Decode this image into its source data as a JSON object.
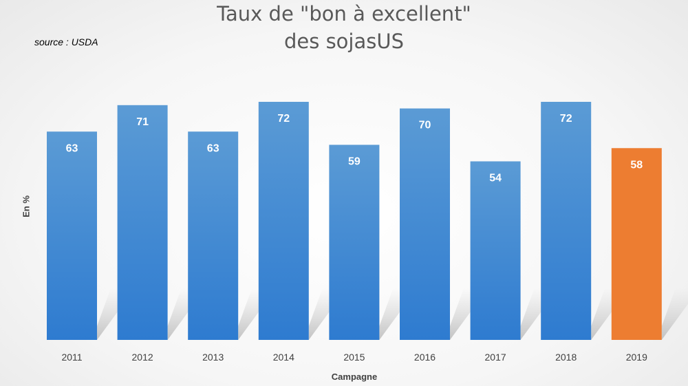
{
  "chart_data": {
    "type": "bar",
    "title": "Taux de \"bon à excellent\"",
    "subtitle": "des sojasUS",
    "source": "source : USDA",
    "xlabel": "Campagne",
    "ylabel": "En %",
    "categories": [
      "2011",
      "2012",
      "2013",
      "2014",
      "2015",
      "2016",
      "2017",
      "2018",
      "2019"
    ],
    "values": [
      63,
      71,
      63,
      72,
      59,
      70,
      54,
      72,
      58
    ],
    "ylim": [
      0,
      72
    ],
    "grid": false,
    "legend": "none",
    "data_labels": true,
    "highlight_index": 8,
    "colors": {
      "bar": "#4a8fd8",
      "bar_top": "#5b9bd5",
      "bar_bottom": "#2e7bd0",
      "highlight": "#ed7d31",
      "data_label": "#ffffff",
      "tick_label": "#404040",
      "title": "#595959"
    }
  }
}
